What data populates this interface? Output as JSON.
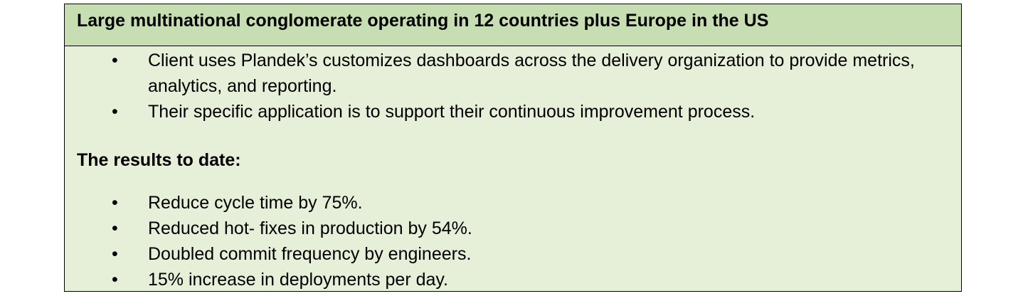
{
  "header": {
    "title": "Large multinational conglomerate operating in 12 countries plus Europe in the US"
  },
  "intro_bullets": [
    "Client uses Plandek’s customizes dashboards across the delivery organization to provide metrics, analytics, and reporting.",
    "Their specific application is to support their continuous improvement process."
  ],
  "results": {
    "heading": "The results to date:",
    "bullets": [
      "Reduce cycle time by 75%.",
      "Reduced hot- fixes in production by 54%.",
      "Doubled commit frequency by engineers.",
      "15% increase in deployments per day."
    ]
  },
  "bullet_glyph": "•",
  "colors": {
    "header_background": "#c6deb2",
    "body_background": "#e6efd8",
    "border": "#000000"
  }
}
